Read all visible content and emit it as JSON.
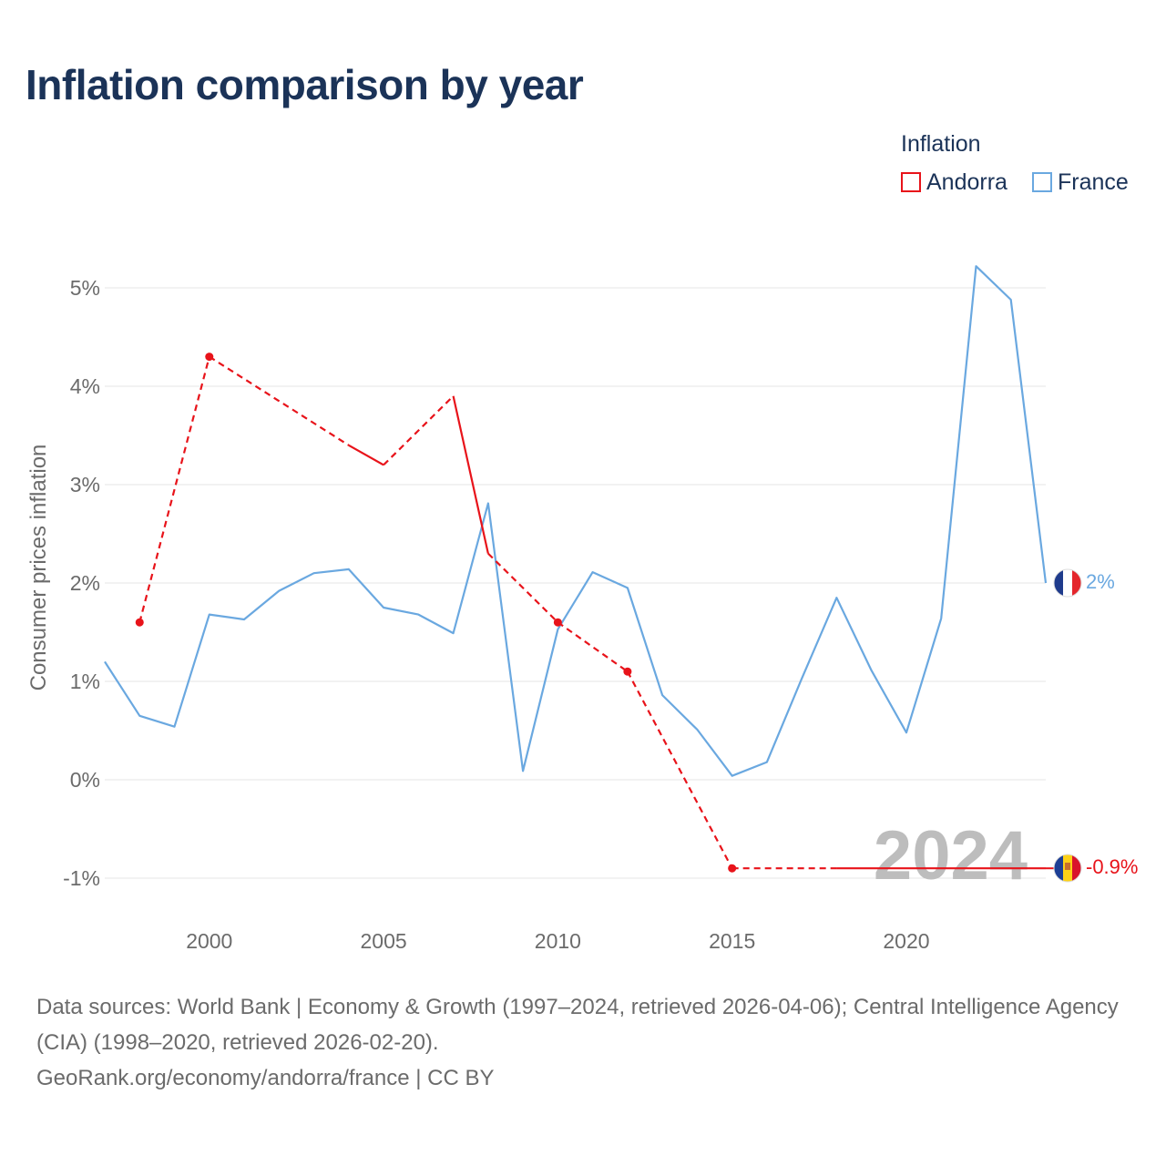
{
  "title": "Inflation comparison by year",
  "legend": {
    "title": "Inflation",
    "items": [
      {
        "label": "Andorra",
        "color": "#e8131a"
      },
      {
        "label": "France",
        "color": "#6aa8e0"
      }
    ]
  },
  "chart_data": {
    "type": "line",
    "ylabel": "Consumer prices inflation",
    "xlabel": "",
    "xlim": [
      1997,
      2024
    ],
    "ylim": [
      -1.4,
      5.4
    ],
    "x_ticks": [
      2000,
      2005,
      2010,
      2015,
      2020
    ],
    "x_tick_labels": [
      "2000",
      "2005",
      "2010",
      "2015",
      "2020"
    ],
    "y_ticks": [
      -1,
      0,
      1,
      2,
      3,
      4,
      5
    ],
    "y_tick_labels": [
      "-1%",
      "0%",
      "1%",
      "2%",
      "3%",
      "4%",
      "5%"
    ],
    "grid": true,
    "year_watermark": "2024",
    "series": [
      {
        "name": "Andorra",
        "color": "#e8131a",
        "end_label": "-0.9%",
        "end_value": -0.9,
        "flag": "andorra-flag-icon",
        "observed": [
          [
            1998,
            1.6
          ],
          [
            2000,
            4.3
          ],
          [
            2004,
            3.4
          ],
          [
            2005,
            3.2
          ],
          [
            2007,
            3.9
          ],
          [
            2008,
            2.3
          ],
          [
            2010,
            1.6
          ],
          [
            2012,
            1.1
          ],
          [
            2015,
            -0.9
          ],
          [
            2018,
            -0.9
          ],
          [
            2024,
            -0.9
          ]
        ],
        "solid_segments": [
          [
            2004,
            2005
          ],
          [
            2007,
            2008
          ],
          [
            2018,
            2024
          ]
        ],
        "dots": [
          1998,
          2000,
          2010,
          2012,
          2015
        ]
      },
      {
        "name": "France",
        "color": "#6aa8e0",
        "end_label": "2%",
        "end_value": 2.0,
        "flag": "france-flag-icon",
        "x": [
          1997,
          1998,
          1999,
          2000,
          2001,
          2002,
          2003,
          2004,
          2005,
          2006,
          2007,
          2008,
          2009,
          2010,
          2011,
          2012,
          2013,
          2014,
          2015,
          2016,
          2017,
          2018,
          2019,
          2020,
          2021,
          2022,
          2023,
          2024
        ],
        "values": [
          1.2,
          0.65,
          0.54,
          1.68,
          1.63,
          1.92,
          2.1,
          2.14,
          1.75,
          1.68,
          1.49,
          2.81,
          0.09,
          1.53,
          2.11,
          1.95,
          0.86,
          0.51,
          0.04,
          0.18,
          1.03,
          1.85,
          1.11,
          0.48,
          1.64,
          5.22,
          4.88,
          2.0
        ]
      }
    ]
  },
  "footer": {
    "sources": "Data sources: World Bank | Economy & Growth (1997–2024, retrieved 2026-04-06); Central Intelligence Agency (CIA) (1998–2020, retrieved 2026-02-20).",
    "credit": "GeoRank.org/economy/andorra/france | CC BY"
  }
}
